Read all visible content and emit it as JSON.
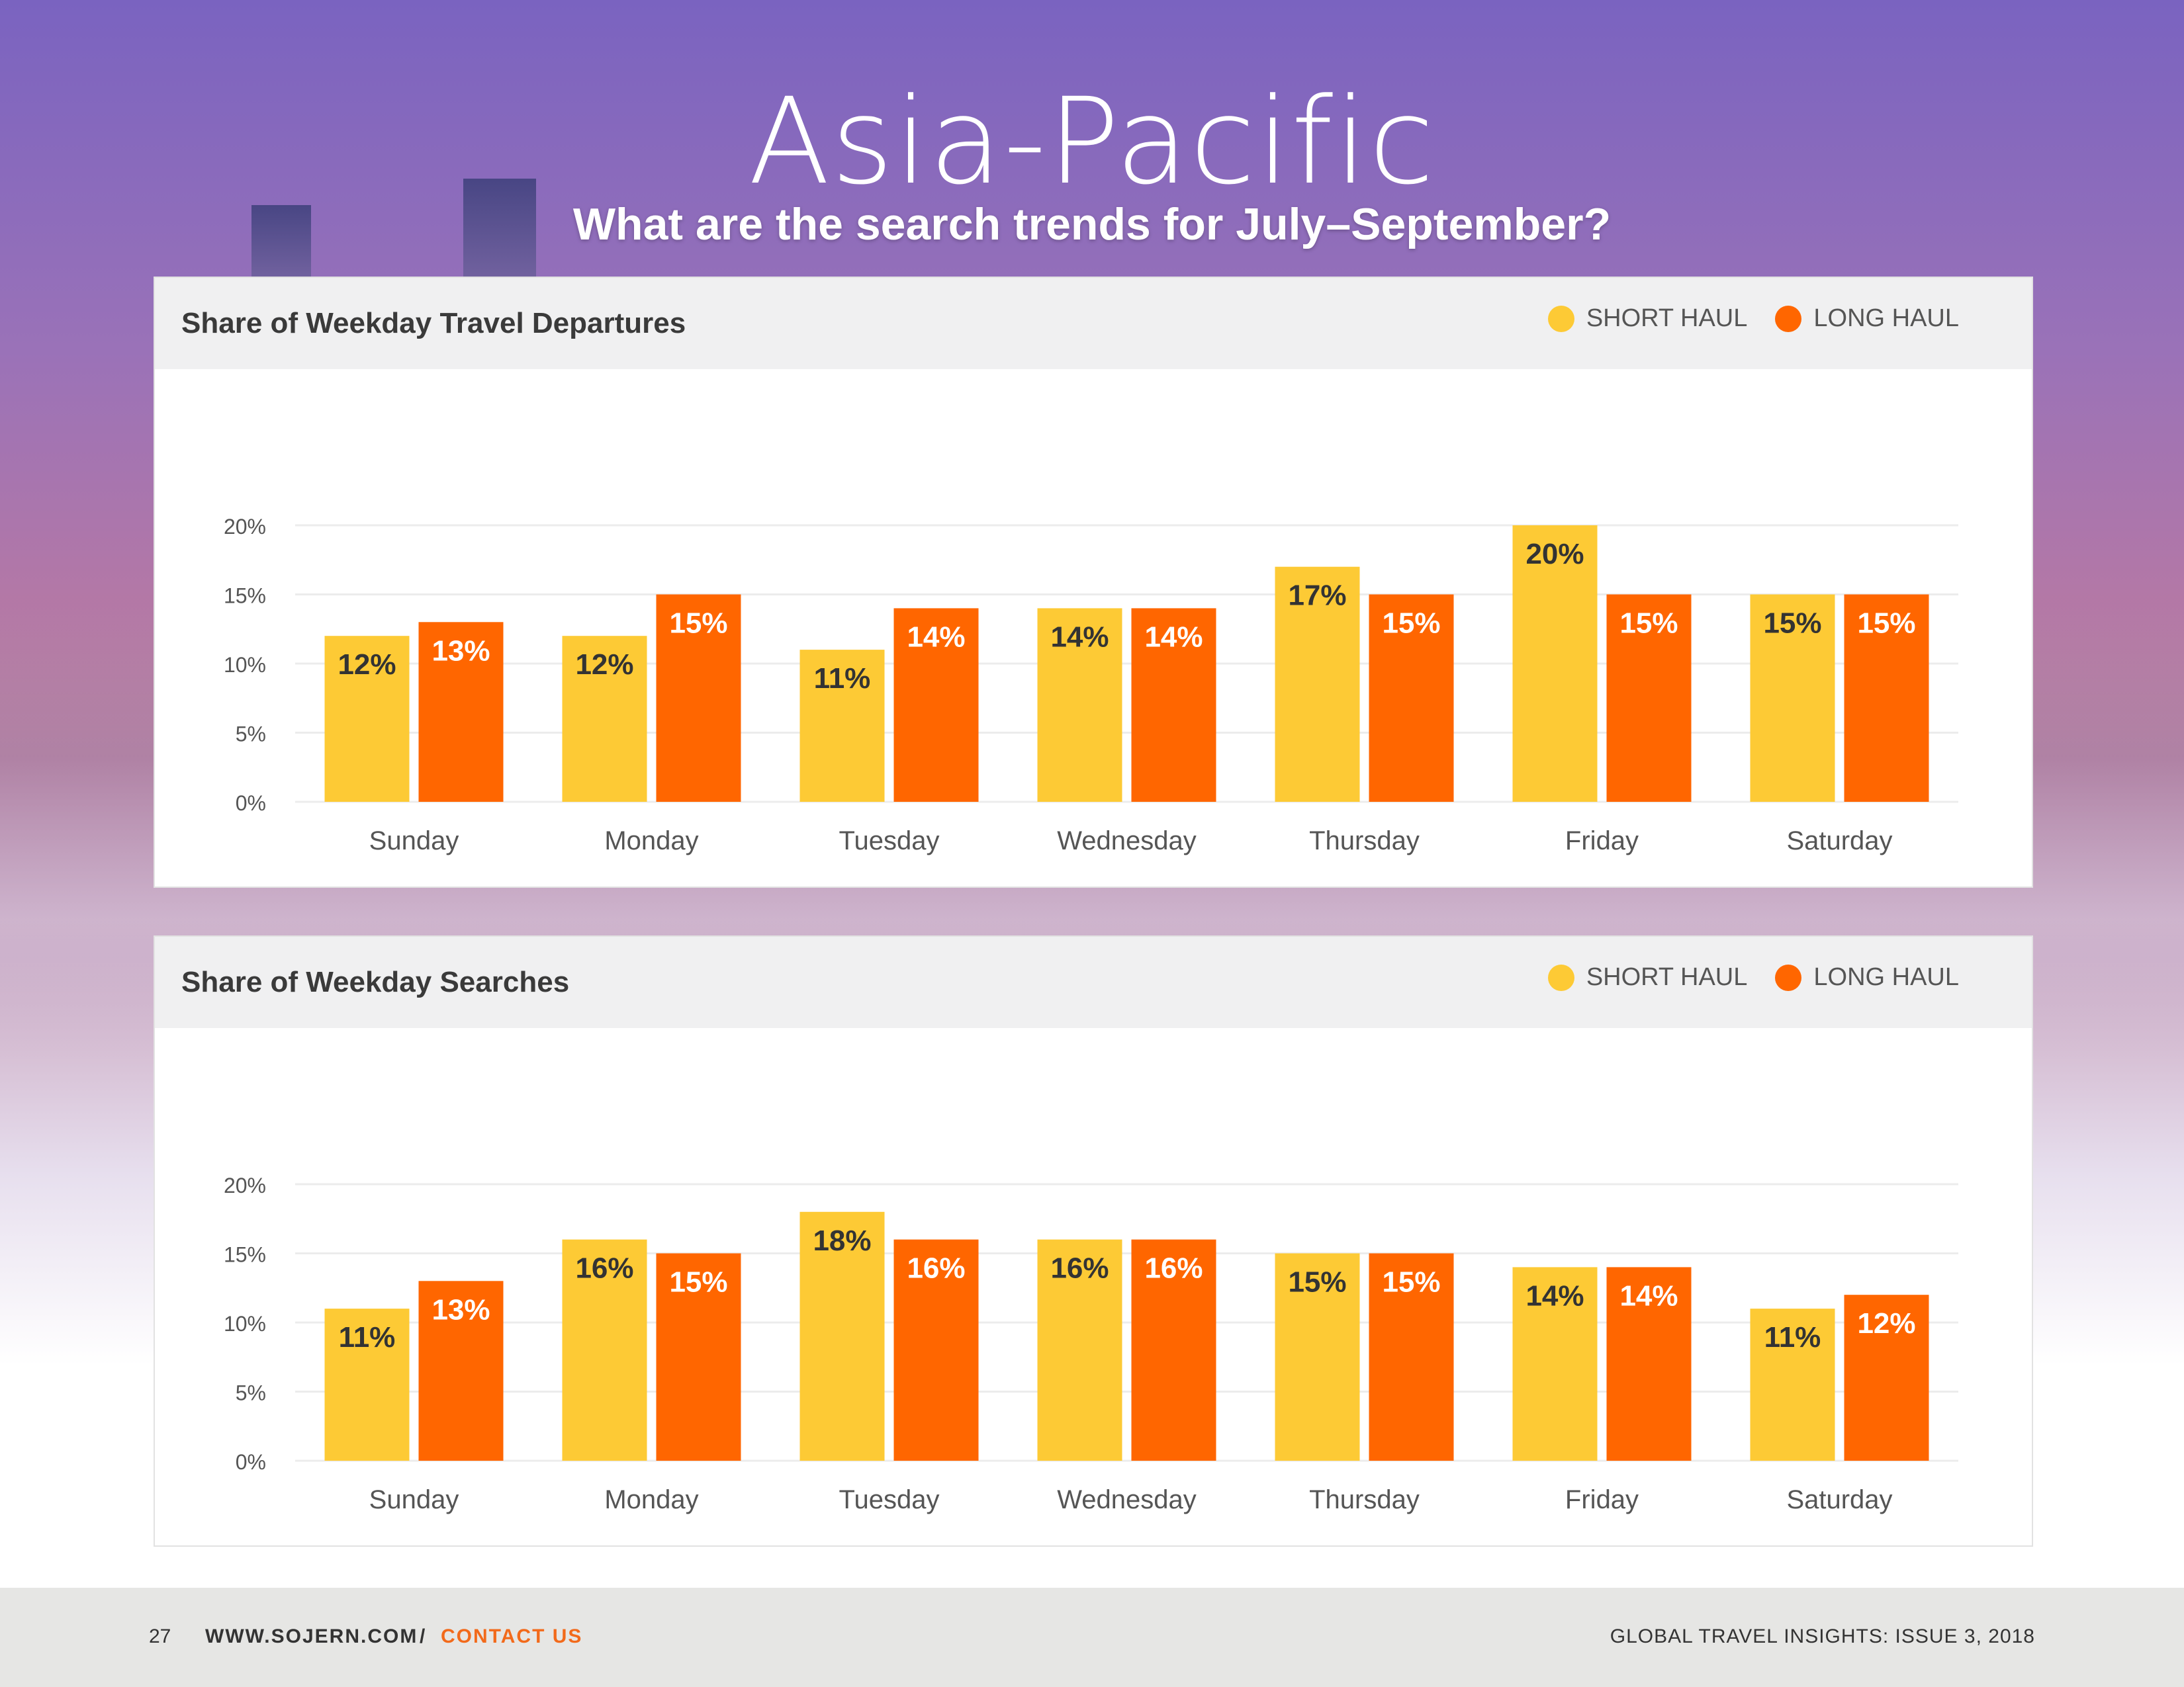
{
  "page": {
    "title": "Asia-Pacific",
    "subtitle": "What are the search trends for July–September?"
  },
  "legend": {
    "short_haul": "SHORT HAUL",
    "long_haul": "LONG HAUL"
  },
  "colors": {
    "short_haul": "#fdca35",
    "long_haul": "#ff6600"
  },
  "chart_data": [
    {
      "type": "bar",
      "title": "Share of Weekday Travel Departures",
      "categories": [
        "Sunday",
        "Monday",
        "Tuesday",
        "Wednesday",
        "Thursday",
        "Friday",
        "Saturday"
      ],
      "series": [
        {
          "name": "SHORT HAUL",
          "values": [
            12,
            12,
            11,
            14,
            17,
            20,
            15
          ]
        },
        {
          "name": "LONG HAUL",
          "values": [
            13,
            15,
            14,
            14,
            15,
            15,
            15
          ]
        }
      ],
      "yticks": [
        "0%",
        "5%",
        "10%",
        "15%",
        "20%"
      ],
      "ylim": [
        0,
        20
      ],
      "grid": true,
      "legend": "top-right"
    },
    {
      "type": "bar",
      "title": "Share of Weekday Searches",
      "categories": [
        "Sunday",
        "Monday",
        "Tuesday",
        "Wednesday",
        "Thursday",
        "Friday",
        "Saturday"
      ],
      "series": [
        {
          "name": "SHORT HAUL",
          "values": [
            11,
            16,
            18,
            16,
            15,
            14,
            11
          ]
        },
        {
          "name": "LONG HAUL",
          "values": [
            13,
            15,
            16,
            16,
            15,
            14,
            12
          ]
        }
      ],
      "yticks": [
        "0%",
        "5%",
        "10%",
        "15%",
        "20%"
      ],
      "ylim": [
        0,
        20
      ],
      "grid": true,
      "legend": "top-right"
    }
  ],
  "footer": {
    "page_number": "27",
    "website": "WWW.SOJERN.COM",
    "separator": "/",
    "contact": "CONTACT US",
    "publication": "GLOBAL TRAVEL INSIGHTS: ISSUE 3, 2018"
  }
}
